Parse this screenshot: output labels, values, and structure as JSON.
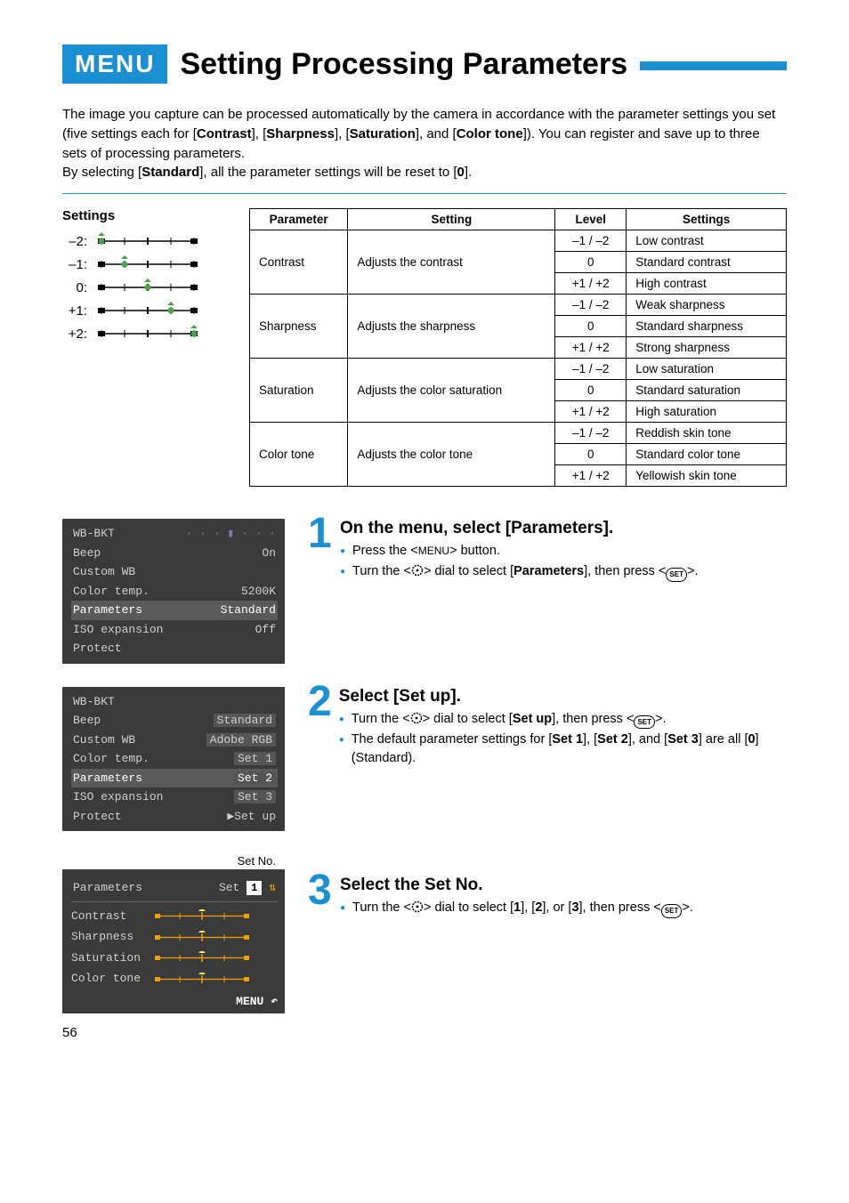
{
  "page_number": "56",
  "menu_badge": "MENU",
  "title": "Setting Processing Parameters",
  "intro": {
    "l1a": "The image you capture can be processed automatically by the camera in accordance with the parameter settings you set (five settings each for [",
    "b1": "Contrast",
    "m1": "], [",
    "b2": "Sharpness",
    "m2": "], [",
    "b3": "Saturation",
    "m3": "], and [",
    "b4": "Color tone",
    "l1b": "]). You can register and save up to three sets of processing parameters.",
    "l2a": "By selecting [",
    "b5": "Standard",
    "l2b": "], all the parameter settings will be reset to [",
    "b6": "0",
    "l2c": "]."
  },
  "settings_heading": "Settings",
  "slider_labels": [
    "–2:",
    "–1:",
    "0:",
    "+1:",
    "+2:"
  ],
  "slider_positions": [
    0,
    1,
    2,
    3,
    4
  ],
  "table": {
    "headers": [
      "Parameter",
      "Setting",
      "Level",
      "Settings"
    ],
    "groups": [
      {
        "param": "Contrast",
        "setting": "Adjusts the contrast",
        "rows": [
          {
            "level": "–1 / –2",
            "desc": "Low contrast"
          },
          {
            "level": "0",
            "desc": "Standard contrast"
          },
          {
            "level": "+1 / +2",
            "desc": "High contrast"
          }
        ]
      },
      {
        "param": "Sharpness",
        "setting": "Adjusts the sharpness",
        "rows": [
          {
            "level": "–1 / –2",
            "desc": "Weak sharpness"
          },
          {
            "level": "0",
            "desc": "Standard sharpness"
          },
          {
            "level": "+1 / +2",
            "desc": "Strong sharpness"
          }
        ]
      },
      {
        "param": "Saturation",
        "setting": "Adjusts the color saturation",
        "rows": [
          {
            "level": "–1 / –2",
            "desc": "Low saturation"
          },
          {
            "level": "0",
            "desc": "Standard saturation"
          },
          {
            "level": "+1 / +2",
            "desc": "High saturation"
          }
        ]
      },
      {
        "param": "Color tone",
        "setting": "Adjusts the color tone",
        "rows": [
          {
            "level": "–1 / –2",
            "desc": "Reddish skin tone"
          },
          {
            "level": "0",
            "desc": "Standard color tone"
          },
          {
            "level": "+1 / +2",
            "desc": "Yellowish skin tone"
          }
        ]
      }
    ]
  },
  "screen1": {
    "rows": [
      {
        "l": "WB-BKT",
        "r": "· · · ▮ · · ·",
        "hl": false,
        "rcolor": "#7a7ab0"
      },
      {
        "l": "Beep",
        "r": "On",
        "hl": false
      },
      {
        "l": "Custom WB",
        "r": "",
        "hl": false
      },
      {
        "l": "Color temp.",
        "r": "5200K",
        "hl": false
      },
      {
        "l": "Parameters",
        "r": "Standard",
        "hl": true
      },
      {
        "l": "ISO expansion",
        "r": "Off",
        "hl": false
      },
      {
        "l": "Protect",
        "r": "",
        "hl": false
      }
    ]
  },
  "screen2": {
    "rows": [
      {
        "l": "WB-BKT",
        "r": "",
        "hl": false
      },
      {
        "l": "Beep",
        "r": "Standard",
        "hl": false,
        "rbox": true
      },
      {
        "l": "Custom WB",
        "r": "Adobe RGB",
        "hl": false,
        "rbox": true
      },
      {
        "l": "Color temp.",
        "r": "Set 1",
        "hl": false,
        "rbox": true
      },
      {
        "l": "Parameters",
        "r": "Set 2",
        "hl": true,
        "rbox": true
      },
      {
        "l": "ISO expansion",
        "r": "Set 3",
        "hl": false,
        "rbox": true
      },
      {
        "l": "Protect",
        "r": "▶Set up",
        "hl": false
      }
    ]
  },
  "screen3": {
    "title_l": "Parameters",
    "title_r_pre": "Set",
    "title_r_box": "1",
    "lines": [
      "Contrast",
      "Sharpness",
      "Saturation",
      "Color tone"
    ],
    "menu_return": "MENU ↶"
  },
  "setno_label": "Set No.",
  "steps": [
    {
      "num": "1",
      "h": "On the menu, select [Parameters].",
      "items": [
        {
          "pre": "Press the <",
          "menu": "MENU",
          "post": "> button."
        },
        {
          "pre": "Turn the <",
          "dial": true,
          "mid": "> dial to select [",
          "bold": "Parameters",
          "post2": "], then press <",
          "set": true,
          "end": ">."
        }
      ]
    },
    {
      "num": "2",
      "h": "Select [Set up].",
      "items": [
        {
          "pre": "Turn the <",
          "dial": true,
          "mid": "> dial to select [",
          "bold": "Set up",
          "post2": "], then press <",
          "set": true,
          "end": ">."
        },
        {
          "pre": "The default parameter settings for [",
          "bold": "Set 1",
          "mid2": "], [",
          "bold2": "Set 2",
          "mid3": "], and [",
          "bold3": "Set 3",
          "post": "] are all [",
          "bold4": "0",
          "end2": "] (Standard)."
        }
      ]
    },
    {
      "num": "3",
      "h": "Select the Set No.",
      "items": [
        {
          "pre": "Turn the <",
          "dial": true,
          "mid": "> dial to select [",
          "bold": "1",
          "mid2": "], [",
          "bold2": "2",
          "mid3": "], or [",
          "bold3": "3",
          "post2": "], then press <",
          "set": true,
          "end": ">."
        }
      ]
    }
  ],
  "colors": {
    "accent": "#1a8fd4",
    "orange": "#f0a000"
  }
}
